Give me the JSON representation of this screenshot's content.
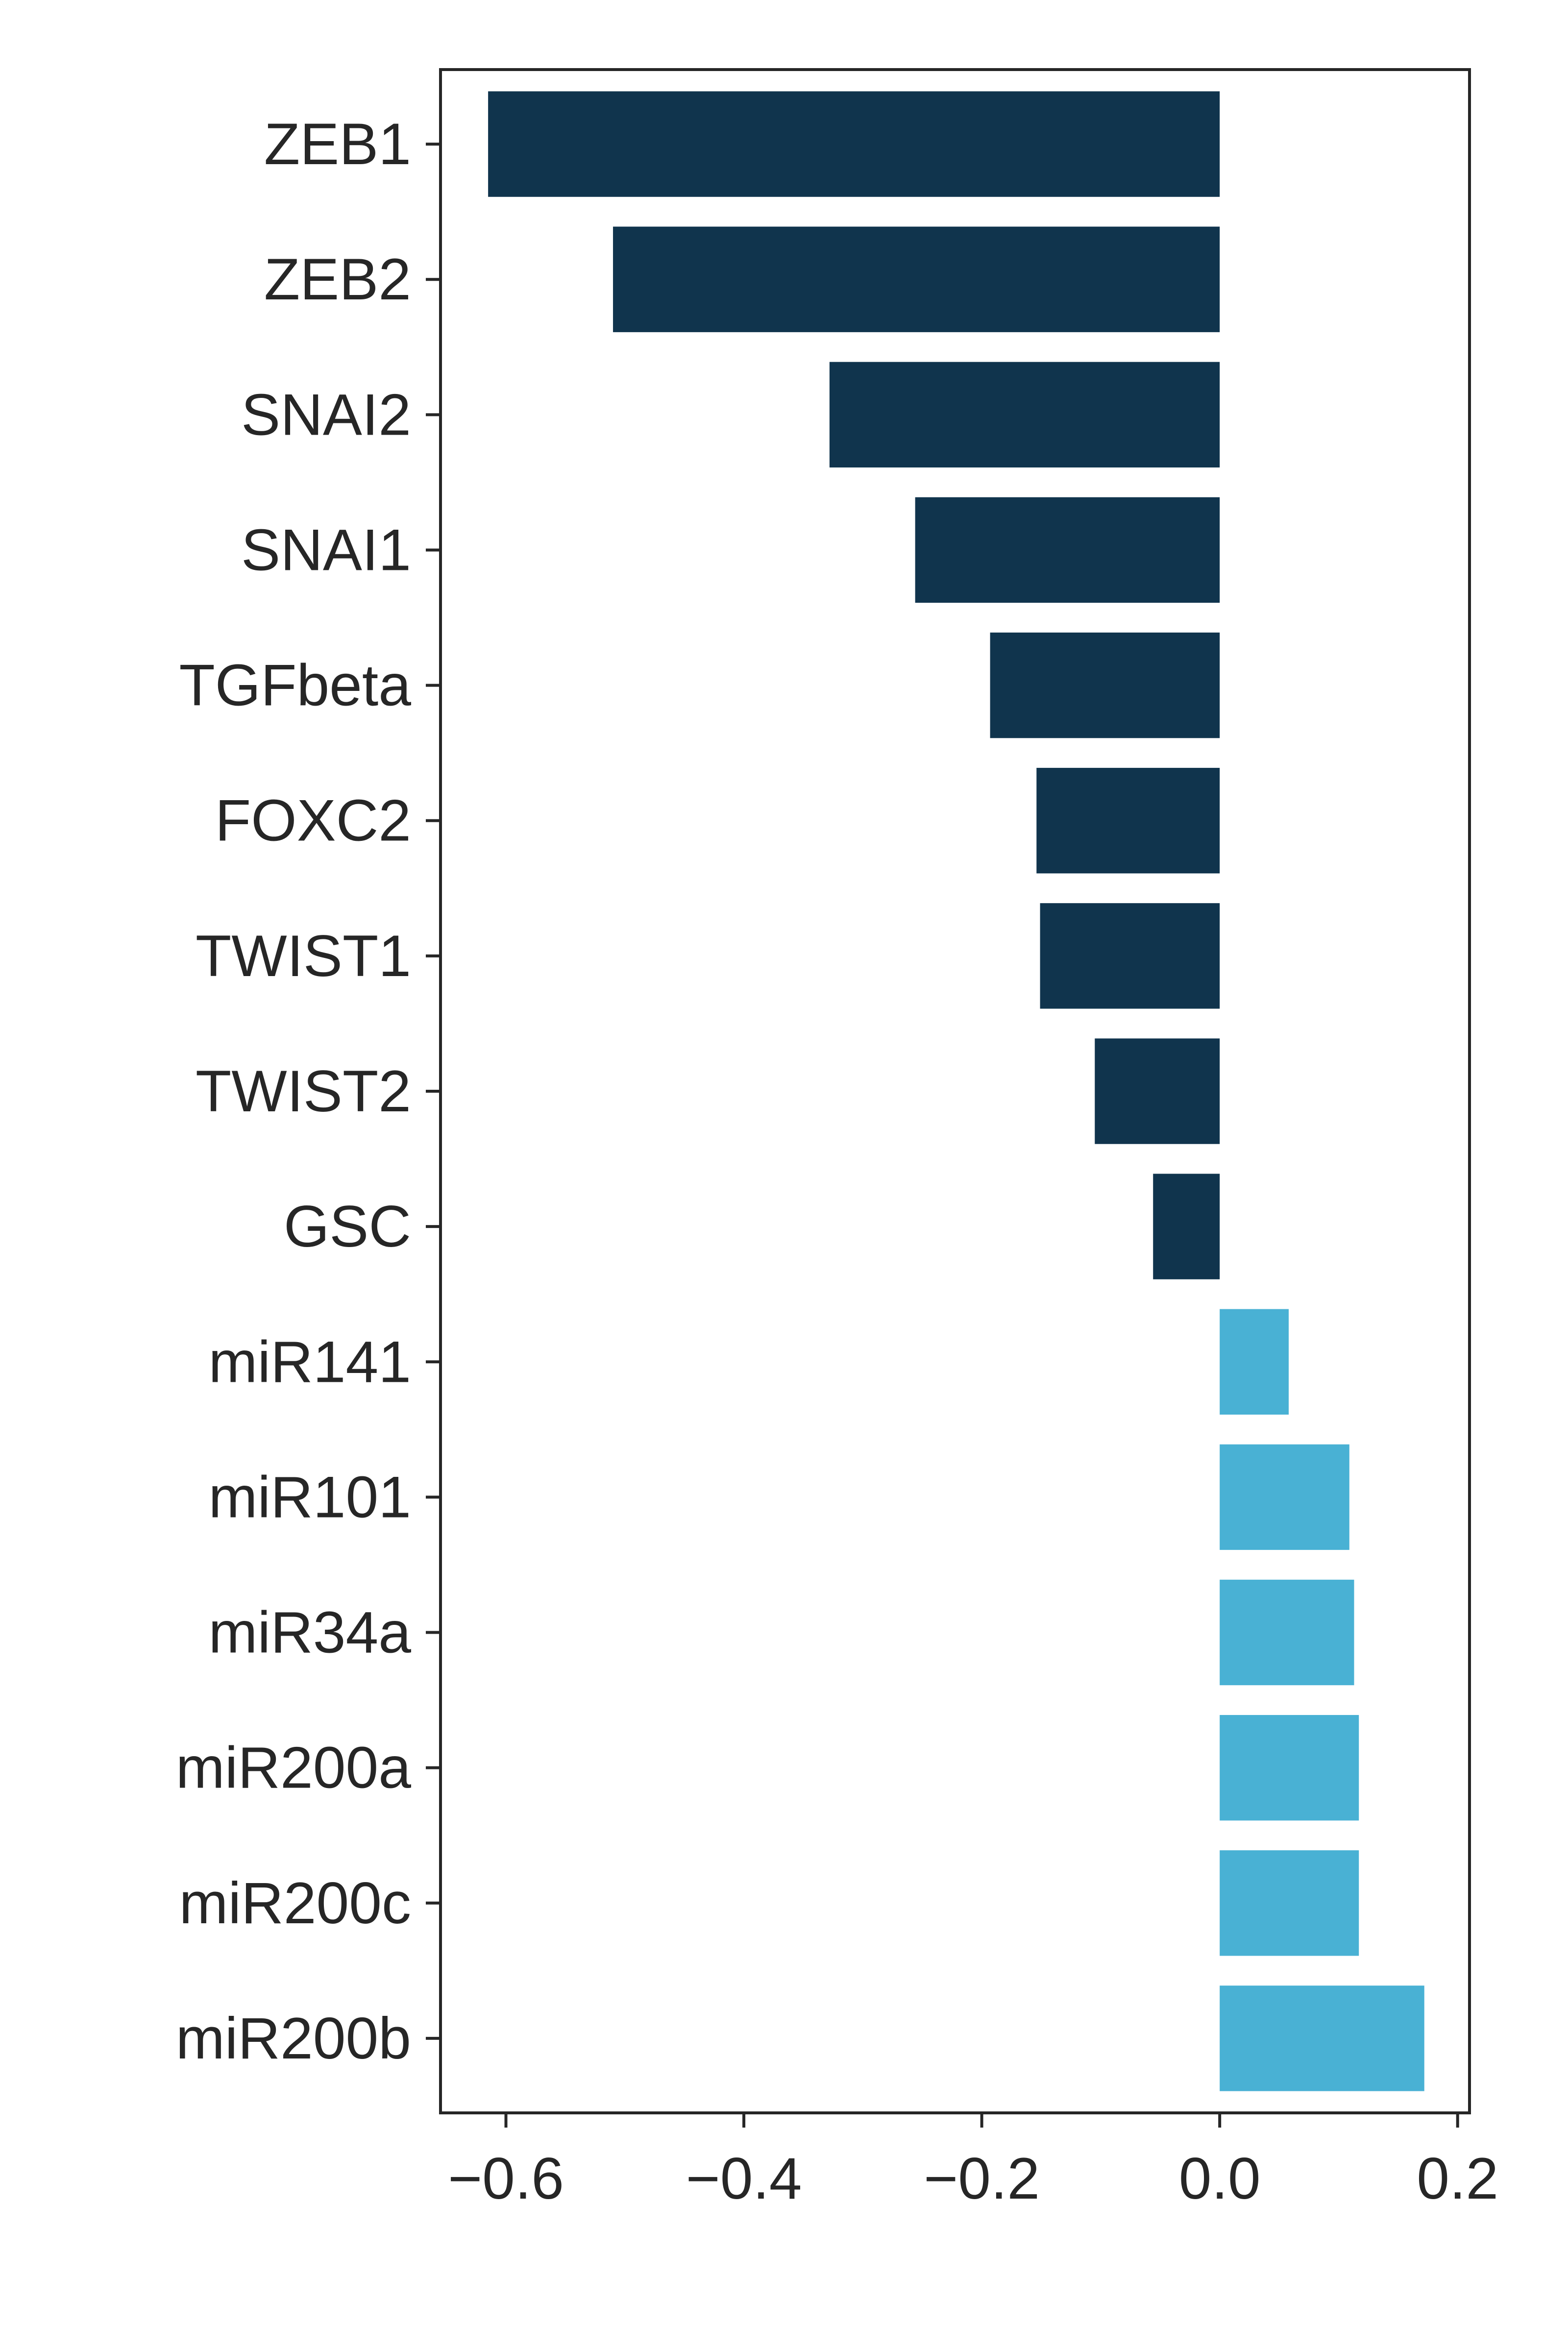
{
  "chart_data": {
    "type": "bar",
    "orientation": "horizontal",
    "title": "",
    "xlabel": "",
    "ylabel": "",
    "categories": [
      "ZEB1",
      "ZEB2",
      "SNAI2",
      "SNAI1",
      "TGFbeta",
      "FOXC2",
      "TWIST1",
      "TWIST2",
      "GSC",
      "miR141",
      "miR101",
      "miR34a",
      "miR200a",
      "miR200c",
      "miR200b"
    ],
    "values": [
      -0.615,
      -0.51,
      -0.328,
      -0.256,
      -0.193,
      -0.154,
      -0.151,
      -0.105,
      -0.056,
      0.058,
      0.109,
      0.113,
      0.117,
      0.117,
      0.172
    ],
    "xlim": [
      -0.655,
      0.21
    ],
    "xticks": [
      -0.6,
      -0.4,
      -0.2,
      0.0,
      0.2
    ],
    "xtick_labels": [
      "−0.6",
      "−0.4",
      "−0.2",
      "0.0",
      "0.2"
    ],
    "colors": {
      "negative": "#10344d",
      "positive": "#49b1d4",
      "axis": "#262626"
    },
    "grid": false,
    "legend": "none"
  }
}
